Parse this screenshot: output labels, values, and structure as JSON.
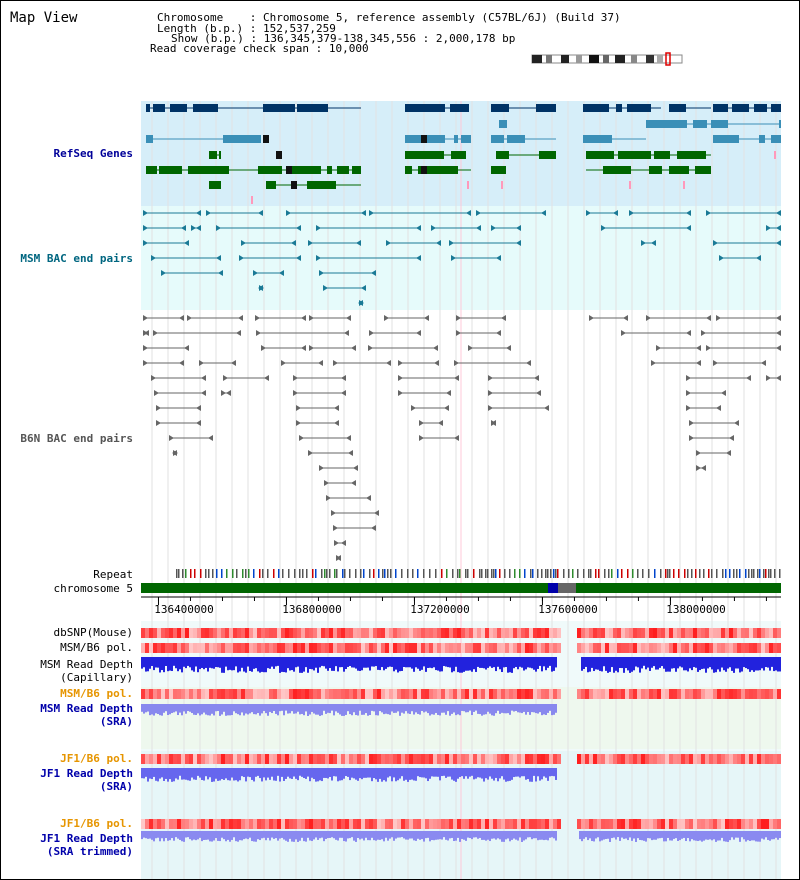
{
  "title": "Map View",
  "info": {
    "chromosome_label": "Chromosome",
    "chromosome_value": "Chromosome 5, reference assembly (C57BL/6J) (Build 37)",
    "length_label": "Length (b.p.)",
    "length_value": "152,537,259",
    "show_label": "Show (b.p.)",
    "show_value": "136,345,379-138,345,556 : 2,000,178 bp",
    "span_label": "Read coverage check span",
    "span_value": "10,000"
  },
  "tracks": {
    "refseq": {
      "label": "RefSeq Genes",
      "color": "#000099"
    },
    "msm_bac": {
      "label": "MSM BAC end pairs",
      "color": "#006680"
    },
    "b6n_bac": {
      "label": "B6N BAC end pairs",
      "color": "#555555"
    },
    "repeat": {
      "label": "Repeat"
    },
    "chromosome": {
      "label": "chromosome 5"
    },
    "dbsnp": {
      "label": "dbSNP(Mouse)"
    },
    "msm_b6_pol_1": {
      "label": "MSM/B6 pol."
    },
    "msm_depth_cap": {
      "label1": "MSM Read Depth",
      "label2": "(Capillary)"
    },
    "msm_b6_pol_2": {
      "label": "MSM/B6 pol.",
      "color": "#e69500"
    },
    "msm_depth_sra": {
      "label1": "MSM Read Depth",
      "label2": "(SRA)",
      "color": "#0000aa"
    },
    "jf1_b6_pol_1": {
      "label": "JF1/B6 pol.",
      "color": "#e69500"
    },
    "jf1_depth_sra": {
      "label1": "JF1 Read Depth",
      "label2": "(SRA)",
      "color": "#0000aa"
    },
    "jf1_b6_pol_2": {
      "label": "JF1/B6 pol.",
      "color": "#e69500"
    },
    "jf1_depth_trim": {
      "label1": "JF1 Read Depth",
      "label2": "(SRA trimmed)",
      "color": "#0000aa"
    }
  },
  "axis": {
    "ticks": [
      {
        "label": "136400000",
        "value": 136400000
      },
      {
        "label": "136800000",
        "value": 136800000
      },
      {
        "label": "137200000",
        "value": 137200000
      },
      {
        "label": "137600000",
        "value": 137600000
      },
      {
        "label": "138000000",
        "value": 138000000
      }
    ],
    "range": [
      136345379,
      138345556
    ]
  }
}
